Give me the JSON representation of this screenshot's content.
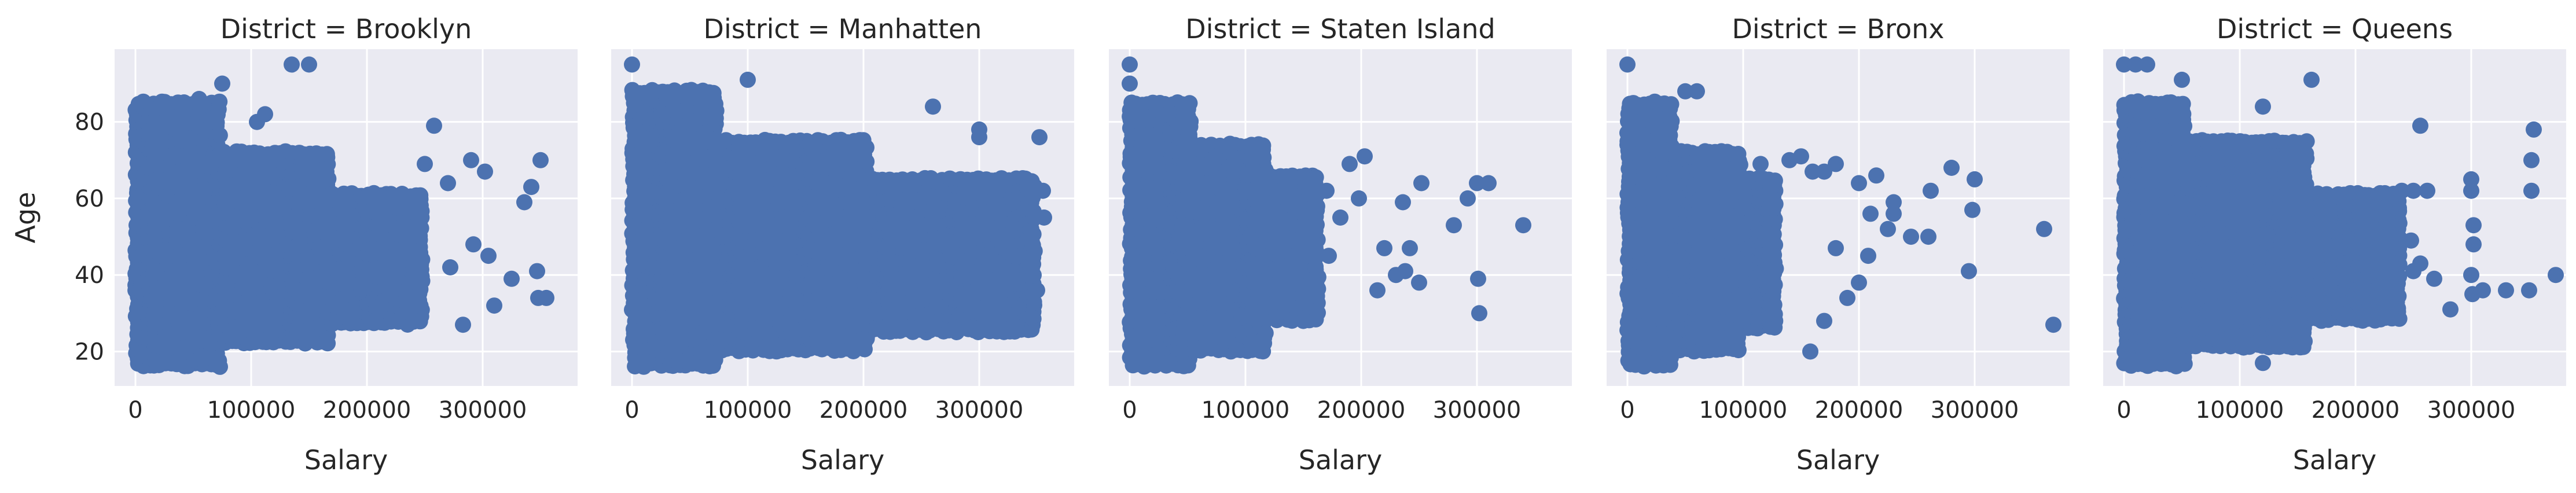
{
  "chart_data": {
    "type": "scatter",
    "facet_title_prefix": "District = ",
    "xlabel": "Salary",
    "ylabel": "Age",
    "xlim": [
      -18000,
      382000
    ],
    "ylim": [
      11,
      99
    ],
    "xticks": [
      0,
      100000,
      200000,
      300000
    ],
    "yticks": [
      20,
      40,
      60,
      80
    ],
    "grid": true,
    "color": "#4c72b0",
    "panels": [
      {
        "title": "District = Brooklyn",
        "dense": [
          {
            "x": [
              0,
              75000
            ],
            "y": [
              16,
              86
            ]
          },
          {
            "x": [
              60000,
              170000
            ],
            "y": [
              22,
              73
            ]
          },
          {
            "x": [
              150000,
              250000
            ],
            "y": [
              27,
              62
            ]
          }
        ],
        "points": [
          [
            135000,
            95
          ],
          [
            150000,
            95
          ],
          [
            75000,
            90
          ],
          [
            55000,
            86
          ],
          [
            105000,
            80
          ],
          [
            112000,
            82
          ],
          [
            258000,
            79
          ],
          [
            250000,
            69
          ],
          [
            270000,
            64
          ],
          [
            290000,
            70
          ],
          [
            302000,
            67
          ],
          [
            350000,
            70
          ],
          [
            342000,
            63
          ],
          [
            336000,
            59
          ],
          [
            355000,
            34
          ],
          [
            347000,
            41
          ],
          [
            325000,
            39
          ],
          [
            310000,
            32
          ],
          [
            292000,
            48
          ],
          [
            272000,
            42
          ],
          [
            305000,
            45
          ],
          [
            348000,
            34
          ],
          [
            215000,
            60
          ],
          [
            226000,
            46
          ],
          [
            198000,
            37
          ],
          [
            245000,
            33
          ],
          [
            73000,
            16
          ],
          [
            283000,
            27
          ]
        ]
      },
      {
        "title": "District = Manhatten",
        "dense": [
          {
            "x": [
              0,
              75000
            ],
            "y": [
              16,
              89
            ]
          },
          {
            "x": [
              60000,
              205000
            ],
            "y": [
              20,
              76
            ]
          },
          {
            "x": [
              200000,
              350000
            ],
            "y": [
              25,
              66
            ]
          }
        ],
        "points": [
          [
            0,
            95
          ],
          [
            100000,
            91
          ],
          [
            260000,
            84
          ],
          [
            300000,
            78
          ],
          [
            300000,
            76
          ],
          [
            352000,
            76
          ],
          [
            355000,
            62
          ],
          [
            330000,
            45
          ],
          [
            356000,
            55
          ],
          [
            350000,
            36
          ],
          [
            345000,
            29
          ],
          [
            301000,
            30
          ],
          [
            275000,
            45
          ],
          [
            310000,
            27
          ],
          [
            240000,
            60
          ],
          [
            212000,
            30
          ],
          [
            186000,
            69
          ],
          [
            172000,
            68
          ],
          [
            252000,
            53
          ]
        ]
      },
      {
        "title": "District = Staten Island",
        "dense": [
          {
            "x": [
              0,
              55000
            ],
            "y": [
              16,
              86
            ]
          },
          {
            "x": [
              40000,
              120000
            ],
            "y": [
              20,
              75
            ]
          },
          {
            "x": [
              100000,
              165000
            ],
            "y": [
              28,
              67
            ]
          }
        ],
        "points": [
          [
            0,
            95
          ],
          [
            0,
            90
          ],
          [
            20000,
            85
          ],
          [
            33000,
            82
          ],
          [
            48000,
            80
          ],
          [
            280000,
            53
          ],
          [
            310000,
            64
          ],
          [
            300000,
            64
          ],
          [
            292000,
            60
          ],
          [
            301000,
            39
          ],
          [
            302000,
            30
          ],
          [
            340000,
            53
          ],
          [
            252000,
            64
          ],
          [
            236000,
            59
          ],
          [
            220000,
            47
          ],
          [
            203000,
            71
          ],
          [
            190000,
            69
          ],
          [
            198000,
            60
          ],
          [
            170000,
            62
          ],
          [
            182000,
            55
          ],
          [
            172000,
            45
          ],
          [
            160000,
            39
          ],
          [
            250000,
            38
          ],
          [
            238000,
            41
          ],
          [
            230000,
            40
          ],
          [
            214000,
            36
          ],
          [
            242000,
            47
          ],
          [
            160000,
            35
          ],
          [
            150000,
            28
          ],
          [
            130000,
            35
          ]
        ]
      },
      {
        "title": "District = Bronx",
        "dense": [
          {
            "x": [
              0,
              40000
            ],
            "y": [
              16,
              86
            ]
          },
          {
            "x": [
              30000,
              100000
            ],
            "y": [
              20,
              73
            ]
          },
          {
            "x": [
              90000,
              130000
            ],
            "y": [
              26,
              66
            ]
          }
        ],
        "points": [
          [
            0,
            95
          ],
          [
            60000,
            88
          ],
          [
            50000,
            88
          ],
          [
            115000,
            69
          ],
          [
            140000,
            70
          ],
          [
            150000,
            71
          ],
          [
            160000,
            67
          ],
          [
            170000,
            67
          ],
          [
            180000,
            69
          ],
          [
            200000,
            64
          ],
          [
            200000,
            38
          ],
          [
            225000,
            52
          ],
          [
            230000,
            56
          ],
          [
            230000,
            59
          ],
          [
            210000,
            56
          ],
          [
            215000,
            66
          ],
          [
            245000,
            50
          ],
          [
            260000,
            50
          ],
          [
            262000,
            62
          ],
          [
            280000,
            68
          ],
          [
            300000,
            65
          ],
          [
            298000,
            57
          ],
          [
            295000,
            41
          ],
          [
            360000,
            52
          ],
          [
            368000,
            27
          ],
          [
            158000,
            20
          ],
          [
            170000,
            28
          ],
          [
            190000,
            34
          ],
          [
            208000,
            45
          ],
          [
            180000,
            47
          ]
        ]
      },
      {
        "title": "District = Queens",
        "dense": [
          {
            "x": [
              0,
              55000
            ],
            "y": [
              16,
              86
            ]
          },
          {
            "x": [
              40000,
              160000
            ],
            "y": [
              21,
              76
            ]
          },
          {
            "x": [
              150000,
              240000
            ],
            "y": [
              28,
              62
            ]
          }
        ],
        "points": [
          [
            0,
            95
          ],
          [
            10000,
            95
          ],
          [
            20000,
            95
          ],
          [
            50000,
            91
          ],
          [
            162000,
            91
          ],
          [
            120000,
            84
          ],
          [
            256000,
            79
          ],
          [
            250000,
            62
          ],
          [
            262000,
            62
          ],
          [
            248000,
            49
          ],
          [
            250000,
            41
          ],
          [
            300000,
            65
          ],
          [
            300000,
            62
          ],
          [
            302000,
            53
          ],
          [
            302000,
            48
          ],
          [
            300000,
            40
          ],
          [
            301000,
            35
          ],
          [
            282000,
            31
          ],
          [
            310000,
            36
          ],
          [
            330000,
            36
          ],
          [
            350000,
            36
          ],
          [
            352000,
            62
          ],
          [
            354000,
            78
          ],
          [
            352000,
            70
          ],
          [
            373000,
            40
          ],
          [
            210000,
            29
          ],
          [
            230000,
            60
          ],
          [
            240000,
            62
          ],
          [
            230000,
            50
          ],
          [
            256000,
            43
          ],
          [
            268000,
            39
          ],
          [
            120000,
            17
          ],
          [
            140000,
            22
          ]
        ]
      }
    ]
  }
}
